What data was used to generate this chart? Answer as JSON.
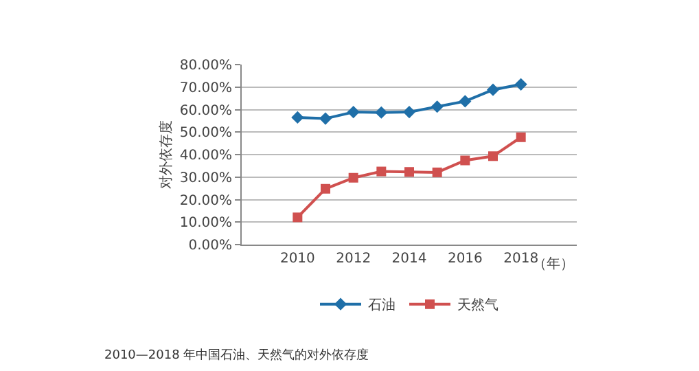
{
  "chart_data": {
    "type": "line",
    "ylabel": "对外依存度",
    "xlabel": "（年）",
    "x": [
      2010,
      2011,
      2012,
      2013,
      2014,
      2015,
      2016,
      2017,
      2018
    ],
    "series": [
      {
        "name": "石油",
        "color": "#1f6fa8",
        "marker": "diamond",
        "values": [
          56.5,
          56.0,
          58.9,
          58.7,
          58.9,
          61.3,
          63.7,
          68.8,
          71.2
        ]
      },
      {
        "name": "天然气",
        "color": "#d0504f",
        "marker": "square",
        "values": [
          12.1,
          24.8,
          29.7,
          32.5,
          32.3,
          32.1,
          37.4,
          39.3,
          47.7
        ]
      }
    ],
    "xlim": [
      2008,
      2020
    ],
    "xticks": [
      2010,
      2012,
      2014,
      2016,
      2018
    ],
    "ylim": [
      0,
      80
    ],
    "yticks": [
      {
        "value": 0,
        "label": "0.00%"
      },
      {
        "value": 10,
        "label": "10.00%"
      },
      {
        "value": 20,
        "label": "20.00%"
      },
      {
        "value": 30,
        "label": "30.00%"
      },
      {
        "value": 40,
        "label": "40.00%"
      },
      {
        "value": 50,
        "label": "50.00%"
      },
      {
        "value": 60,
        "label": "60.00%"
      },
      {
        "value": 70,
        "label": "70.00%"
      },
      {
        "value": 80,
        "label": "80.00%"
      }
    ],
    "grid": "y",
    "legend": "bottom",
    "annotations": [
      "2010—2018 年中国石油、天然气的对外依存度"
    ]
  }
}
